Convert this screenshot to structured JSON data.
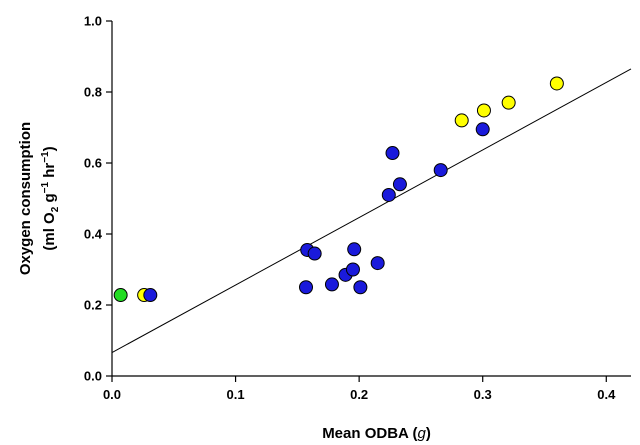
{
  "chart_data": {
    "type": "scatter",
    "title": "",
    "xlabel": {
      "prefix": "Mean ODBA (",
      "var": "g",
      "suffix": ")"
    },
    "ylabel": {
      "line1": "Oxygen consumption",
      "line2_parts": [
        "(ml O",
        "2",
        " g",
        "−1",
        " hr",
        "−1",
        ")"
      ]
    },
    "xlim": [
      0,
      0.42
    ],
    "ylim": [
      0,
      1.0
    ],
    "xticks": [
      "0.0",
      "0.1",
      "0.2",
      "0.3",
      "0.4"
    ],
    "yticks": [
      "0.0",
      "0.2",
      "0.4",
      "0.6",
      "0.8",
      "1.0"
    ],
    "grid": false,
    "series": [
      {
        "color": "#22dd22",
        "points": [
          [
            0.007,
            0.228
          ]
        ]
      },
      {
        "color": "#ffff00",
        "points": [
          [
            0.026,
            0.228
          ],
          [
            0.283,
            0.72
          ],
          [
            0.301,
            0.748
          ],
          [
            0.321,
            0.77
          ],
          [
            0.36,
            0.824
          ]
        ]
      },
      {
        "color": "#1a1adb",
        "points": [
          [
            0.031,
            0.228
          ],
          [
            0.157,
            0.25
          ],
          [
            0.158,
            0.355
          ],
          [
            0.164,
            0.345
          ],
          [
            0.178,
            0.258
          ],
          [
            0.189,
            0.285
          ],
          [
            0.195,
            0.3
          ],
          [
            0.196,
            0.357
          ],
          [
            0.201,
            0.25
          ],
          [
            0.215,
            0.318
          ],
          [
            0.224,
            0.51
          ],
          [
            0.227,
            0.628
          ],
          [
            0.233,
            0.54
          ],
          [
            0.266,
            0.58
          ],
          [
            0.3,
            0.695
          ]
        ]
      }
    ],
    "fit_line": {
      "x": [
        0,
        0.42
      ],
      "y": [
        0.066,
        0.865
      ]
    }
  }
}
